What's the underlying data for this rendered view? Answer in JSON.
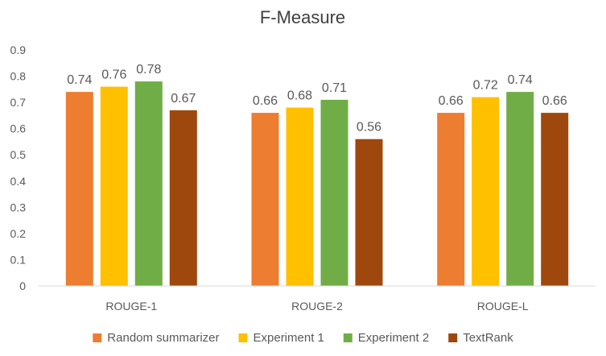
{
  "chart_data": {
    "type": "bar",
    "title": "F-Measure",
    "xlabel": "",
    "ylabel": "",
    "categories": [
      "ROUGE-1",
      "ROUGE-2",
      "ROUGE-L"
    ],
    "series": [
      {
        "name": "Random summarizer",
        "values": [
          0.74,
          0.66,
          0.66
        ],
        "labels": [
          "0.74",
          "0.66",
          "0.66"
        ],
        "color": "#ED7D31"
      },
      {
        "name": "Experiment 1",
        "values": [
          0.76,
          0.68,
          0.72
        ],
        "labels": [
          "0.76",
          "0.68",
          "0.72"
        ],
        "color": "#FFC000"
      },
      {
        "name": "Experiment 2",
        "values": [
          0.78,
          0.71,
          0.74
        ],
        "labels": [
          "0.78",
          "0.71",
          "0.74"
        ],
        "color": "#70AD47"
      },
      {
        "name": "TextRank",
        "values": [
          0.67,
          0.56,
          0.66
        ],
        "labels": [
          "0.67",
          "0.56",
          "0.66"
        ],
        "color": "#9E480E"
      }
    ],
    "ylim": [
      0,
      0.9
    ],
    "yticks": [
      "0",
      "0.1",
      "0.2",
      "0.3",
      "0.4",
      "0.5",
      "0.6",
      "0.7",
      "0.8",
      "0.9"
    ],
    "grid": false,
    "legend": "bottom",
    "colors": {
      "axis": "#D9D9D9",
      "text": "#595959",
      "title": "#404040"
    }
  }
}
